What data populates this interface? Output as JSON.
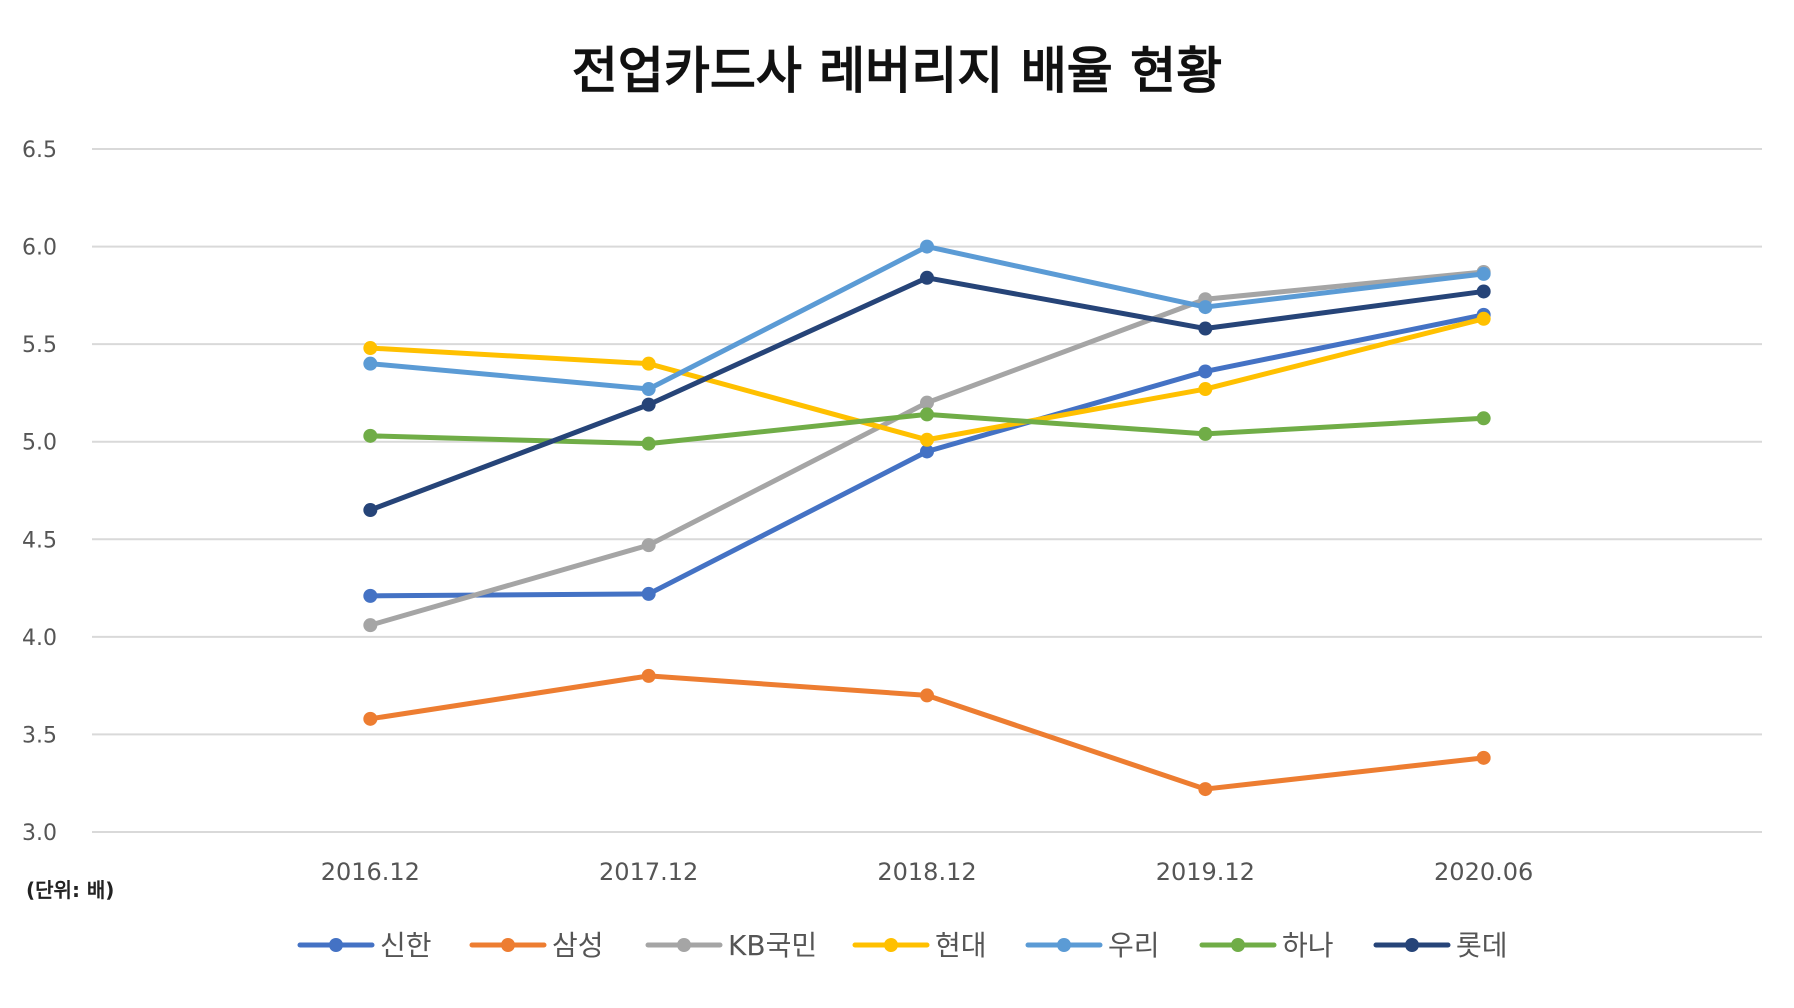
{
  "chart_data": {
    "type": "line",
    "title": "전업카드사 레버리지 배율 현황",
    "unit_note": "(단위: 배)",
    "xlabel": "",
    "ylabel": "",
    "categories": [
      "2016.12",
      "2017.12",
      "2018.12",
      "2019.12",
      "2020.06"
    ],
    "ylim": [
      3.0,
      6.5
    ],
    "yticks": [
      3.0,
      3.5,
      4.0,
      4.5,
      5.0,
      5.5,
      6.0,
      6.5
    ],
    "ytick_labels": [
      "3.0",
      "3.5",
      "4.0",
      "4.5",
      "5.0",
      "5.5",
      "6.0",
      "6.5"
    ],
    "grid": true,
    "legend_position": "bottom",
    "series": [
      {
        "name": "신한",
        "color": "#4472C4",
        "values": [
          4.21,
          4.22,
          4.95,
          5.36,
          5.65
        ]
      },
      {
        "name": "삼성",
        "color": "#ED7D31",
        "values": [
          3.58,
          3.8,
          3.7,
          3.22,
          3.38
        ]
      },
      {
        "name": "KB국민",
        "color": "#A5A5A5",
        "values": [
          4.06,
          4.47,
          5.2,
          5.73,
          5.87
        ]
      },
      {
        "name": "현대",
        "color": "#FFC000",
        "values": [
          5.48,
          5.4,
          5.01,
          5.27,
          5.63
        ]
      },
      {
        "name": "우리",
        "color": "#5B9BD5",
        "values": [
          5.4,
          5.27,
          6.0,
          5.69,
          5.86
        ]
      },
      {
        "name": "하나",
        "color": "#70AD47",
        "values": [
          5.03,
          4.99,
          5.14,
          5.04,
          5.12
        ]
      },
      {
        "name": "롯데",
        "color": "#264478",
        "values": [
          4.65,
          5.19,
          5.84,
          5.58,
          5.77
        ]
      }
    ]
  }
}
